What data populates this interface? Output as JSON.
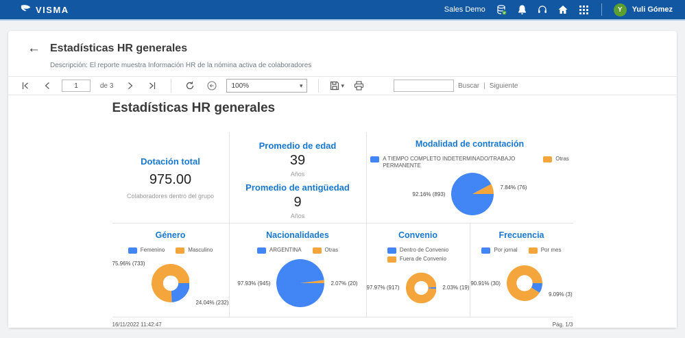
{
  "topbar": {
    "brand": "VISMA",
    "environment": "Sales Demo",
    "user": {
      "initial": "Y",
      "name": "Yuli Gómez"
    },
    "icons": [
      "database-check-icon",
      "bell-icon",
      "headset-icon",
      "home-icon",
      "apps-grid-icon"
    ]
  },
  "header": {
    "title": "Estadísticas HR generales",
    "description": "Descripción: El reporte muestra Información HR de la nómina activa de colaboradores"
  },
  "toolbar": {
    "page_value": "1",
    "page_total_label": "de 3",
    "zoom_value": "100%",
    "search_value": "",
    "search_label": "Buscar",
    "search_separator": "|",
    "search_next_label": "Siguiente"
  },
  "report": {
    "heading": "Estadísticas HR generales",
    "stats": [
      {
        "title": "Dotación total",
        "value": "975.00",
        "caption": "Colaboradores dentro del grupo"
      },
      {
        "title": "Promedio de edad",
        "value": "39",
        "caption": "Años"
      },
      {
        "title": "Promedio de antigüedad",
        "value": "9",
        "caption": "Años"
      }
    ],
    "footer": {
      "timestamp": "16/11/2022 11:42:47",
      "page_label": "Pág. 1/3"
    }
  },
  "colors": {
    "topbar_bg": "#1257a2",
    "accent_blue": "#1878d0",
    "chart_blue": "#4285F4",
    "chart_orange": "#F4A63C",
    "avatar_green": "#5b9e31"
  },
  "chart_data": [
    {
      "type": "pie",
      "title": "Modalidad de contratación",
      "size": 62,
      "hole": 0,
      "start_deg": 28.2,
      "legend_layout": "row",
      "legend": [
        {
          "label": "A TIEMPO COMPLETO INDETERMINADO/TRABAJO PERMANENTE",
          "color": "#4285F4"
        },
        {
          "label": "Otras",
          "color": "#F4A63C"
        }
      ],
      "slices": [
        {
          "name": "Otras",
          "pct": 7.84,
          "count": 76,
          "color": "#F4A63C"
        },
        {
          "name": "A TIEMPO COMPLETO INDETERMINADO/TRABAJO PERMANENTE",
          "pct": 92.16,
          "count": 893,
          "color": "#4285F4"
        }
      ],
      "left_label": {
        "text": "92.16% (893)",
        "valign": "v-mid"
      },
      "right_label": {
        "text": "7.84% (76)",
        "valign": "v-upper"
      }
    },
    {
      "type": "donut",
      "title": "Género",
      "size": 64,
      "hole": 0.4,
      "start_deg": 0,
      "legend_layout": "row",
      "legend": [
        {
          "label": "Femenino",
          "color": "#4285F4"
        },
        {
          "label": "Masculino",
          "color": "#F4A63C"
        }
      ],
      "slices": [
        {
          "name": "Femenino",
          "pct": 24.04,
          "count": 232,
          "color": "#4285F4"
        },
        {
          "name": "Masculino",
          "pct": 75.96,
          "count": 733,
          "color": "#F4A63C"
        }
      ],
      "left_label": {
        "text": "75.96% (733)",
        "valign": "v-top"
      },
      "right_label": {
        "text": "24.04% (232)",
        "valign": "v-bot"
      }
    },
    {
      "type": "pie",
      "title": "Nacionalidades",
      "size": 70,
      "hole": 0,
      "start_deg": 7.5,
      "legend_layout": "row",
      "legend": [
        {
          "label": "ARGENTINA",
          "color": "#4285F4"
        },
        {
          "label": "Otras",
          "color": "#F4A63C"
        }
      ],
      "slices": [
        {
          "name": "Otras",
          "pct": 2.07,
          "count": 20,
          "color": "#F4A63C"
        },
        {
          "name": "ARGENTINA",
          "pct": 97.93,
          "count": 945,
          "color": "#4285F4"
        }
      ],
      "left_label": {
        "text": "97.93% (945)",
        "valign": "v-mid"
      },
      "right_label": {
        "text": "2.07% (20)",
        "valign": "v-mid"
      }
    },
    {
      "type": "donut",
      "title": "Convenio",
      "size": 60,
      "hole": 0.45,
      "start_deg": 3.7,
      "legend_layout": "stack",
      "legend": [
        {
          "label": "Dentro de Convenio",
          "color": "#4285F4"
        },
        {
          "label": "Fuera de Convenio",
          "color": "#F4A63C"
        }
      ],
      "slices": [
        {
          "name": "Dentro de Convenio",
          "pct": 2.03,
          "count": 19,
          "color": "#4285F4"
        },
        {
          "name": "Fuera de Convenio",
          "pct": 97.97,
          "count": 917,
          "color": "#F4A63C"
        }
      ],
      "left_label": {
        "text": "97.97% (917)",
        "valign": "v-mid"
      },
      "right_label": {
        "text": "2.03% (19)",
        "valign": "v-mid"
      }
    },
    {
      "type": "donut",
      "title": "Frecuencia",
      "size": 52,
      "hole": 0.45,
      "start_deg": 0,
      "legend_layout": "row",
      "legend": [
        {
          "label": "Por jornal",
          "color": "#4285F4"
        },
        {
          "label": "Por mes",
          "color": "#F4A63C"
        }
      ],
      "slices": [
        {
          "name": "Por jornal",
          "pct": 9.09,
          "count": 3,
          "color": "#4285F4"
        },
        {
          "name": "Por mes",
          "pct": 90.91,
          "count": 30,
          "color": "#F4A63C"
        }
      ],
      "left_label": {
        "text": "90.91% (30)",
        "valign": "v-mid"
      },
      "right_label": {
        "text": "9.09% (3)",
        "valign": "v-low"
      }
    }
  ]
}
